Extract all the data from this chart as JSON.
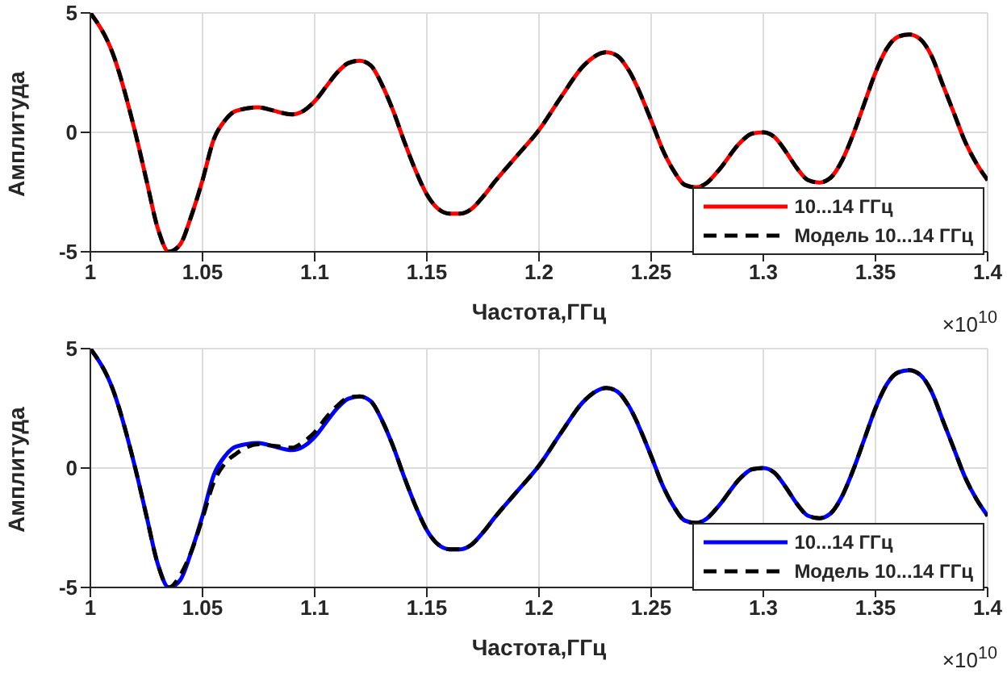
{
  "chart_data": [
    {
      "type": "line",
      "xlabel": "Частота,ГГц",
      "ylabel": "Амплитуда",
      "annotations": [
        "×10$^{10}$"
      ],
      "xlim": [
        1,
        1.4
      ],
      "xticks": [
        1,
        1.05,
        1.1,
        1.15,
        1.2,
        1.25,
        1.3,
        1.35,
        1.4
      ],
      "ylim": [
        -5,
        5
      ],
      "yticks": [
        -5,
        0,
        5
      ],
      "grid": true,
      "legend": "bottom right",
      "x": [
        1,
        1.01,
        1.02,
        1.025,
        1.03,
        1.035,
        1.04,
        1.045,
        1.05,
        1.055,
        1.06,
        1.065,
        1.075,
        1.08,
        1.09,
        1.095,
        1.1,
        1.105,
        1.11,
        1.115,
        1.12,
        1.125,
        1.13,
        1.135,
        1.14,
        1.145,
        1.15,
        1.155,
        1.16,
        1.165,
        1.17,
        1.175,
        1.18,
        1.19,
        1.2,
        1.21,
        1.22,
        1.23,
        1.235,
        1.24,
        1.25,
        1.255,
        1.26,
        1.265,
        1.27,
        1.275,
        1.28,
        1.29,
        1.295,
        1.3,
        1.305,
        1.31,
        1.315,
        1.32,
        1.325,
        1.33,
        1.335,
        1.34,
        1.345,
        1.35,
        1.355,
        1.36,
        1.365,
        1.37,
        1.375,
        1.38,
        1.385,
        1.39,
        1.395,
        1.4
      ],
      "series": [
        {
          "name": "10...14 ГГц",
          "color": "#ff0000",
          "line_style": "solid",
          "values": [
            5,
            3.3,
            0,
            -2,
            -4,
            -5,
            -4.7,
            -3.5,
            -2,
            -0.3,
            0.5,
            0.9,
            1.05,
            0.95,
            0.75,
            0.9,
            1.3,
            1.9,
            2.5,
            2.9,
            3,
            2.8,
            2,
            0.9,
            -0.4,
            -1.6,
            -2.6,
            -3.2,
            -3.4,
            -3.4,
            -3.2,
            -2.7,
            -2.1,
            -1,
            0.1,
            1.5,
            2.8,
            3.35,
            3.2,
            2.6,
            0.5,
            -0.7,
            -1.6,
            -2.2,
            -2.3,
            -2.1,
            -1.6,
            -0.4,
            -0.05,
            0,
            -0.2,
            -0.8,
            -1.5,
            -2,
            -2.1,
            -1.9,
            -1.2,
            -0.1,
            1.2,
            2.5,
            3.5,
            4,
            4.1,
            3.9,
            3.2,
            2,
            0.8,
            -0.4,
            -1.3,
            -2
          ]
        },
        {
          "name": "Модель 10...14 ГГц",
          "color": "#000000",
          "line_style": "dashed",
          "values": [
            5,
            3.3,
            0,
            -2,
            -4,
            -5,
            -4.7,
            -3.5,
            -2,
            -0.3,
            0.5,
            0.9,
            1.05,
            0.95,
            0.75,
            0.9,
            1.3,
            1.9,
            2.5,
            2.9,
            3,
            2.8,
            2,
            0.9,
            -0.4,
            -1.6,
            -2.6,
            -3.2,
            -3.4,
            -3.4,
            -3.2,
            -2.7,
            -2.1,
            -1,
            0.1,
            1.5,
            2.8,
            3.35,
            3.2,
            2.6,
            0.5,
            -0.7,
            -1.6,
            -2.2,
            -2.3,
            -2.1,
            -1.6,
            -0.4,
            -0.05,
            0,
            -0.2,
            -0.8,
            -1.5,
            -2,
            -2.1,
            -1.9,
            -1.2,
            -0.1,
            1.2,
            2.5,
            3.5,
            4,
            4.1,
            3.9,
            3.2,
            2,
            0.8,
            -0.4,
            -1.3,
            -2
          ]
        }
      ]
    },
    {
      "type": "line",
      "xlabel": "Частота,ГГц",
      "ylabel": "Амплитуда",
      "annotations": [
        "×10$^{10}$"
      ],
      "xlim": [
        1,
        1.4
      ],
      "xticks": [
        1,
        1.05,
        1.1,
        1.15,
        1.2,
        1.25,
        1.3,
        1.35,
        1.4
      ],
      "ylim": [
        -5,
        5
      ],
      "yticks": [
        -5,
        0,
        5
      ],
      "grid": true,
      "legend": "bottom right",
      "x": [
        1,
        1.01,
        1.02,
        1.025,
        1.03,
        1.035,
        1.04,
        1.045,
        1.05,
        1.055,
        1.06,
        1.065,
        1.075,
        1.08,
        1.09,
        1.095,
        1.1,
        1.105,
        1.11,
        1.115,
        1.12,
        1.125,
        1.13,
        1.135,
        1.14,
        1.145,
        1.15,
        1.155,
        1.16,
        1.165,
        1.17,
        1.175,
        1.18,
        1.19,
        1.2,
        1.21,
        1.22,
        1.23,
        1.235,
        1.24,
        1.25,
        1.255,
        1.26,
        1.265,
        1.27,
        1.275,
        1.28,
        1.29,
        1.295,
        1.3,
        1.305,
        1.31,
        1.315,
        1.32,
        1.325,
        1.33,
        1.335,
        1.34,
        1.345,
        1.35,
        1.355,
        1.36,
        1.365,
        1.37,
        1.375,
        1.38,
        1.385,
        1.39,
        1.395,
        1.4
      ],
      "series": [
        {
          "name": "10...14 ГГц",
          "color": "#0000ff",
          "line_style": "solid",
          "values": [
            5,
            3.3,
            0,
            -2,
            -4,
            -5,
            -4.7,
            -3.5,
            -2,
            -0.3,
            0.5,
            0.9,
            1.05,
            0.95,
            0.75,
            0.9,
            1.3,
            1.9,
            2.5,
            2.9,
            3,
            2.8,
            2,
            0.9,
            -0.4,
            -1.6,
            -2.6,
            -3.2,
            -3.4,
            -3.4,
            -3.2,
            -2.7,
            -2.1,
            -1,
            0.1,
            1.5,
            2.8,
            3.35,
            3.2,
            2.6,
            0.5,
            -0.7,
            -1.6,
            -2.2,
            -2.3,
            -2.1,
            -1.6,
            -0.4,
            -0.05,
            0,
            -0.2,
            -0.8,
            -1.5,
            -2,
            -2.1,
            -1.9,
            -1.2,
            -0.1,
            1.2,
            2.5,
            3.5,
            4,
            4.1,
            3.9,
            3.2,
            2,
            0.8,
            -0.4,
            -1.3,
            -2
          ]
        },
        {
          "name": "Модель 10...14 ГГц",
          "color": "#000000",
          "line_style": "dashed",
          "values": [
            5,
            3.3,
            0,
            -2,
            -4,
            -5,
            -4.5,
            -3.5,
            -2.1,
            -0.6,
            0.2,
            0.6,
            1,
            0.95,
            0.85,
            1.1,
            1.5,
            2.1,
            2.6,
            2.95,
            3,
            2.8,
            2,
            0.9,
            -0.4,
            -1.6,
            -2.6,
            -3.2,
            -3.4,
            -3.4,
            -3.2,
            -2.7,
            -2.1,
            -1,
            0.1,
            1.5,
            2.8,
            3.35,
            3.2,
            2.6,
            0.5,
            -0.7,
            -1.6,
            -2.2,
            -2.3,
            -2.1,
            -1.6,
            -0.4,
            -0.05,
            0,
            -0.2,
            -0.8,
            -1.5,
            -2,
            -2.1,
            -1.9,
            -1.2,
            -0.1,
            1.2,
            2.5,
            3.5,
            4,
            4.1,
            3.9,
            3.2,
            2,
            0.8,
            -0.4,
            -1.3,
            -2
          ]
        }
      ]
    }
  ]
}
